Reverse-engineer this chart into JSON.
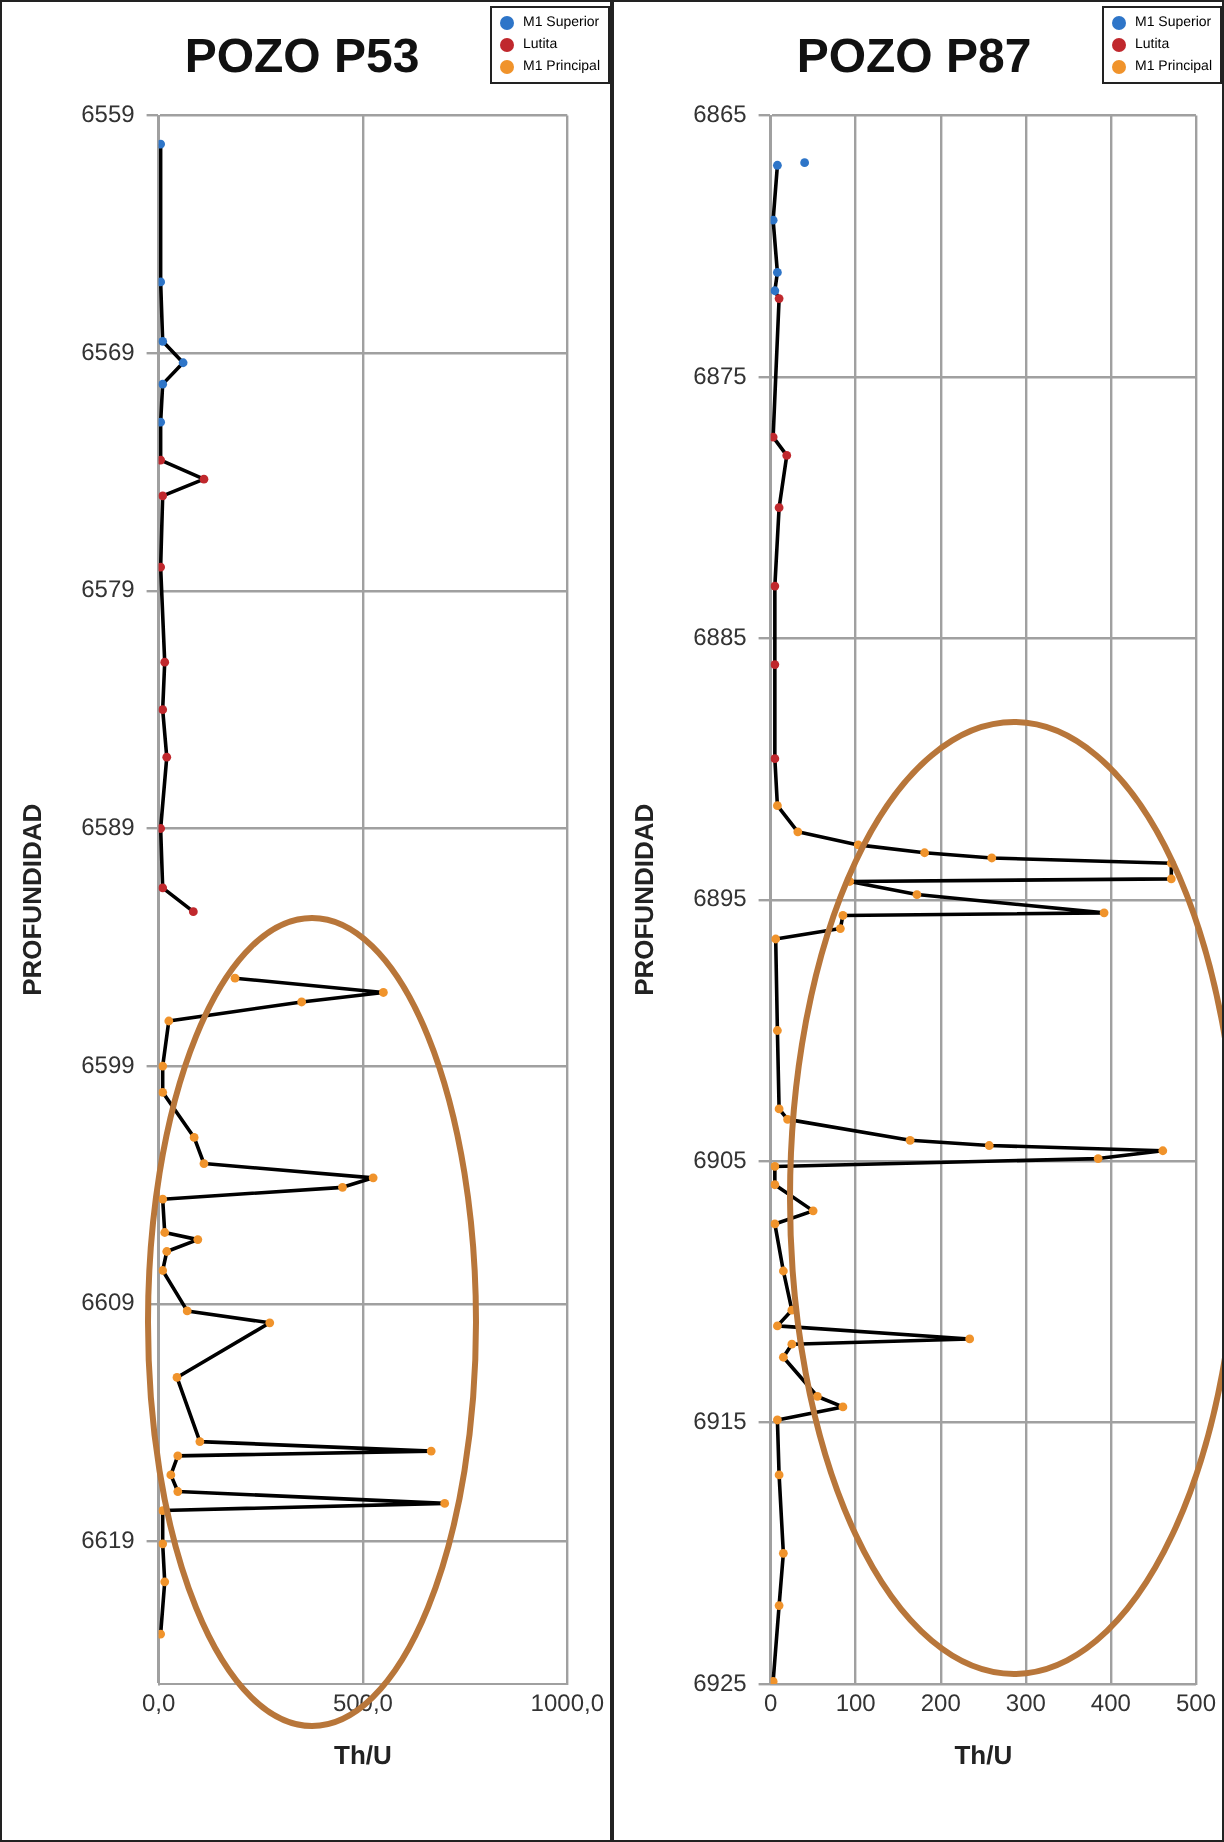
{
  "chart_data": [
    {
      "type": "scatter",
      "title": "POZO P53",
      "xlabel": "Th/U",
      "ylabel": "PROFUNDIDAD",
      "xlim": [
        0,
        1000
      ],
      "xticks": [
        {
          "value": 0,
          "label": "0,0"
        },
        {
          "value": 500,
          "label": "500,0"
        },
        {
          "value": 1000,
          "label": "1000,0"
        }
      ],
      "ylim": [
        6625,
        6559
      ],
      "yticks": [
        6559,
        6569,
        6579,
        6589,
        6599,
        6609,
        6619
      ],
      "grid": true,
      "legend": "top right",
      "marker": "circle",
      "series": [
        {
          "name": "M1 Superior",
          "color": "#2e75c8",
          "x": [
            5,
            5,
            10,
            60,
            10,
            5
          ],
          "values": [
            6560.2,
            6566,
            6568.5,
            6569.4,
            6570.3,
            6571.9
          ]
        },
        {
          "name": "Lutita",
          "color": "#c0282d",
          "x": [
            5,
            111,
            10,
            5,
            15,
            10,
            20,
            5,
            10,
            85
          ],
          "values": [
            6573.5,
            6574.3,
            6575,
            6578,
            6582,
            6584,
            6586,
            6589,
            6591.5,
            6592.5
          ]
        },
        {
          "name": "M1 Principal",
          "color": "#f0932b",
          "x": [
            187,
            550,
            350,
            25,
            10,
            10,
            87,
            111,
            525,
            450,
            10,
            15,
            96,
            20,
            10,
            70,
            272,
            45,
            101,
            667,
            47,
            30,
            47,
            700,
            10,
            10,
            15,
            5
          ],
          "values": [
            6595.3,
            6595.9,
            6596.3,
            6597.1,
            6599,
            6600.1,
            6602,
            6603.1,
            6603.7,
            6604.1,
            6604.6,
            6606,
            6606.3,
            6606.8,
            6607.6,
            6609.3,
            6609.8,
            6612.1,
            6614.8,
            6615.2,
            6615.4,
            6616.2,
            6616.9,
            6617.4,
            6617.7,
            6619.1,
            6620.7,
            6622.9
          ]
        },
        {
          "type": "line",
          "color": "#000000",
          "marker": "none",
          "x": [
            5,
            5,
            10,
            60,
            10,
            5,
            5,
            111,
            10,
            5,
            15,
            10,
            20,
            5,
            10,
            85,
            null,
            187,
            550,
            350,
            25,
            10,
            10,
            87,
            111,
            525,
            450,
            10,
            15,
            96,
            20,
            10,
            70,
            272,
            45,
            101,
            667,
            47,
            30,
            47,
            700,
            10,
            10,
            15,
            5
          ],
          "values": [
            6560.2,
            6566,
            6568.5,
            6569.4,
            6570.3,
            6571.9,
            6573.5,
            6574.3,
            6575,
            6578,
            6582,
            6584,
            6586,
            6589,
            6591.5,
            6592.5,
            null,
            6595.3,
            6595.9,
            6596.3,
            6597.1,
            6599,
            6600.1,
            6602,
            6603.1,
            6603.7,
            6604.1,
            6604.6,
            6606,
            6606.3,
            6606.8,
            6607.6,
            6609.3,
            6609.8,
            6612.1,
            6614.8,
            6615.2,
            6615.4,
            6616.2,
            6616.9,
            6617.4,
            6617.7,
            6619.1,
            6620.7,
            6622.9
          ]
        }
      ]
    },
    {
      "type": "scatter",
      "title": "POZO P87",
      "xlabel": "Th/U",
      "ylabel": "PROFUNDIDAD",
      "xlim": [
        0,
        500
      ],
      "xticks": [
        0,
        100,
        200,
        300,
        400,
        500
      ],
      "ylim": [
        6925,
        6865
      ],
      "yticks": [
        6865,
        6875,
        6885,
        6895,
        6905,
        6915,
        6925
      ],
      "grid": true,
      "legend": "top right",
      "marker": "circle",
      "series": [
        {
          "name": "M1 Superior",
          "color": "#2e75c8",
          "x": [
            40,
            8,
            3,
            8,
            5
          ],
          "values": [
            6866.8,
            6866.9,
            6869,
            6871,
            6871.7
          ]
        },
        {
          "name": "Lutita",
          "color": "#c0282d",
          "x": [
            10,
            3,
            19,
            10,
            5,
            5,
            5
          ],
          "values": [
            6872,
            6877.3,
            6878,
            6880,
            6883,
            6886,
            6889.6
          ]
        },
        {
          "name": "M1 Principal",
          "color": "#f0932b",
          "x": [
            8,
            32,
            103,
            181,
            260,
            471,
            471,
            93,
            172,
            392,
            85,
            82,
            6,
            8,
            10,
            20,
            164,
            257,
            461,
            385,
            5,
            5,
            50,
            5,
            15,
            25,
            8,
            234,
            25,
            15,
            55,
            85,
            8,
            10,
            15,
            10,
            3
          ],
          "values": [
            6891.4,
            6892.4,
            6892.9,
            6893.2,
            6893.4,
            6893.6,
            6894.2,
            6894.3,
            6894.8,
            6895.5,
            6895.6,
            6896.1,
            6896.5,
            6900,
            6903,
            6903.4,
            6904.2,
            6904.4,
            6904.6,
            6904.9,
            6905.2,
            6905.9,
            6906.9,
            6907.4,
            6909.2,
            6910.7,
            6911.3,
            6911.8,
            6912,
            6912.5,
            6914,
            6914.4,
            6914.9,
            6917,
            6920,
            6922,
            6924.9
          ]
        },
        {
          "type": "line",
          "color": "#000000",
          "marker": "none",
          "x": [
            8,
            3,
            8,
            5,
            10,
            3,
            19,
            10,
            5,
            5,
            8,
            32,
            103,
            181,
            260,
            471,
            471,
            93,
            172,
            392,
            85,
            82,
            6,
            8,
            10,
            20,
            164,
            257,
            461,
            385,
            5,
            5,
            50,
            5,
            15,
            25,
            8,
            234,
            25,
            15,
            55,
            85,
            8,
            10,
            15,
            10,
            3
          ],
          "values": [
            6866.9,
            6869,
            6871,
            6871.7,
            6872,
            6877.3,
            6878,
            6880,
            6883,
            6889.6,
            6891.4,
            6892.4,
            6892.9,
            6893.2,
            6893.4,
            6893.6,
            6894.2,
            6894.3,
            6894.8,
            6895.5,
            6895.6,
            6896.1,
            6896.5,
            6900,
            6903,
            6903.4,
            6904.2,
            6904.4,
            6904.6,
            6904.9,
            6905.2,
            6905.9,
            6906.9,
            6907.4,
            6909.2,
            6910.7,
            6911.3,
            6911.8,
            6912,
            6912.5,
            6914,
            6914.4,
            6914.9,
            6917,
            6920,
            6922,
            6924.9
          ]
        }
      ]
    }
  ]
}
